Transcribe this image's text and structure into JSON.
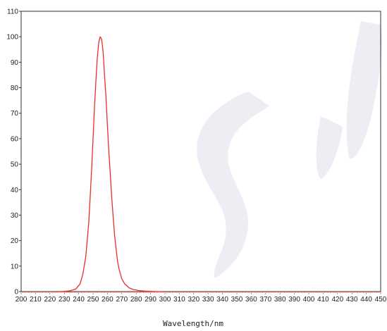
{
  "chart_data": {
    "type": "line",
    "title": "",
    "xlabel": "Wavelength/nm",
    "ylabel": "",
    "xlim": [
      200,
      450
    ],
    "ylim": [
      0,
      110
    ],
    "x_ticks": [
      200,
      210,
      220,
      230,
      240,
      250,
      260,
      270,
      280,
      290,
      300,
      310,
      320,
      330,
      340,
      350,
      360,
      370,
      380,
      390,
      400,
      410,
      420,
      430,
      440,
      450
    ],
    "y_ticks": [
      0,
      10,
      20,
      30,
      40,
      50,
      60,
      70,
      80,
      90,
      100,
      110
    ],
    "grid": false,
    "legend": "none",
    "series": [
      {
        "color": "#e8302a",
        "x": [
          226,
          230,
          234,
          238,
          241,
          243,
          245,
          247,
          248,
          249,
          250,
          251,
          252,
          253,
          254,
          255,
          256,
          257,
          258,
          259,
          260,
          261,
          262,
          263,
          264,
          265,
          266,
          267,
          268,
          270,
          272,
          275,
          278,
          282,
          286,
          290,
          295,
          298
        ],
        "y": [
          0,
          0.1,
          0.3,
          1,
          3,
          7,
          14,
          27,
          37,
          48,
          60,
          72,
          83,
          92,
          98,
          100,
          99,
          94,
          85,
          76,
          65,
          55,
          46,
          37,
          29,
          22,
          17,
          12,
          9,
          5,
          3,
          1.5,
          0.8,
          0.4,
          0.2,
          0.1,
          0,
          0
        ]
      }
    ]
  },
  "colors": {
    "axis": "#333333",
    "tick_mark": "#e8302a",
    "watermark": "#eceef4"
  }
}
